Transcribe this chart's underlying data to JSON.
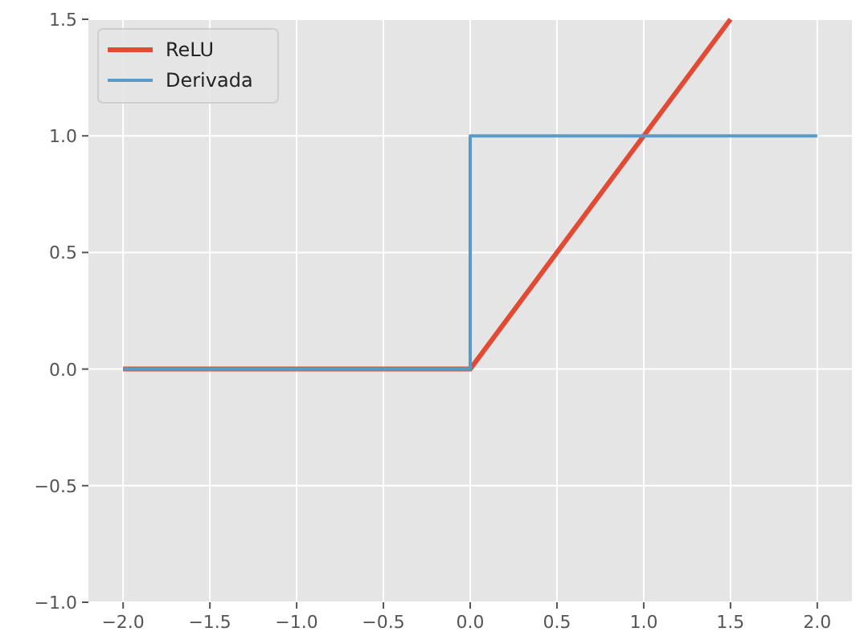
{
  "chart_data": {
    "type": "line",
    "xlim": [
      -2.2,
      2.2
    ],
    "ylim": [
      -1,
      1.5
    ],
    "xticks": [
      {
        "value": -2,
        "label": "−2.0"
      },
      {
        "value": -1.5,
        "label": "−1.5"
      },
      {
        "value": -1,
        "label": "−1.0"
      },
      {
        "value": -0.5,
        "label": "−0.5"
      },
      {
        "value": 0,
        "label": "0.0"
      },
      {
        "value": 0.5,
        "label": "0.5"
      },
      {
        "value": 1,
        "label": "1.0"
      },
      {
        "value": 1.5,
        "label": "1.5"
      },
      {
        "value": 2,
        "label": "2.0"
      }
    ],
    "yticks": [
      {
        "value": -1,
        "label": "−1.0"
      },
      {
        "value": -0.5,
        "label": "−0.5"
      },
      {
        "value": 0,
        "label": "0.0"
      },
      {
        "value": 0.5,
        "label": "0.5"
      },
      {
        "value": 1,
        "label": "1.0"
      },
      {
        "value": 1.5,
        "label": "1.5"
      }
    ],
    "grid": true,
    "legend": "top left",
    "line_style": "solid",
    "marker": "none",
    "series": [
      {
        "name": "ReLU",
        "color": "#e24a33",
        "x": [
          -2,
          0,
          1.5
        ],
        "values": [
          0,
          0,
          1.5
        ]
      },
      {
        "name": "Derivada",
        "color": "#5a9ac8",
        "x": [
          -2,
          0,
          0,
          2
        ],
        "values": [
          0,
          0,
          1,
          1
        ]
      }
    ]
  }
}
